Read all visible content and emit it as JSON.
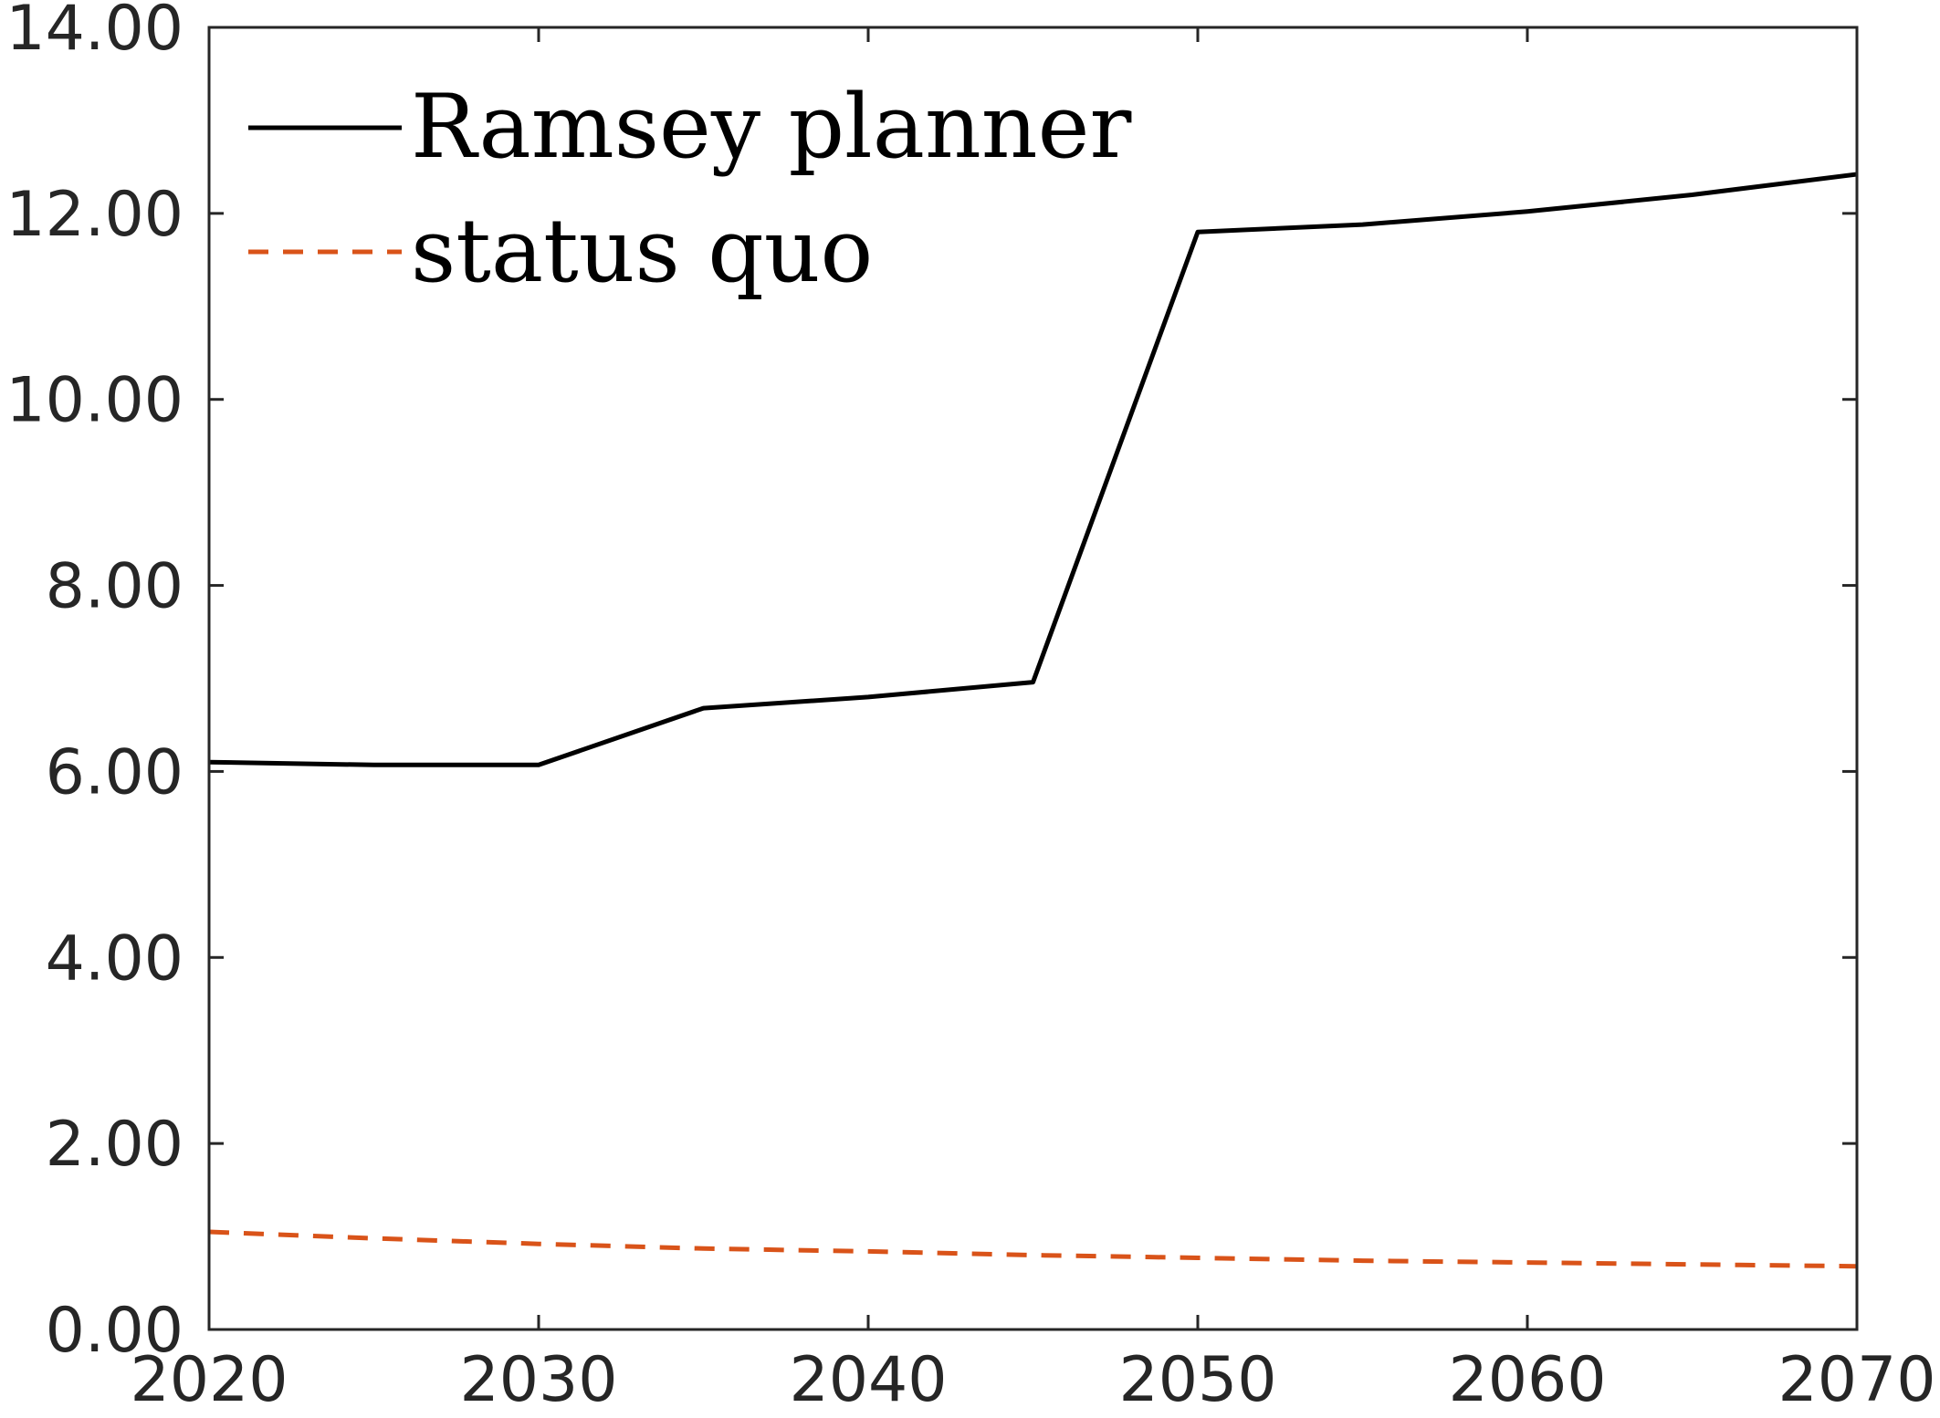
{
  "chart_data": {
    "type": "line",
    "title": "",
    "xlabel": "",
    "ylabel": "",
    "xlim": [
      2020,
      2070
    ],
    "ylim": [
      0,
      14
    ],
    "x_ticks": [
      2020,
      2030,
      2040,
      2050,
      2060,
      2070
    ],
    "x_tick_labels": [
      "2020",
      "2030",
      "2040",
      "2050",
      "2060",
      "2070"
    ],
    "y_ticks": [
      0,
      2,
      4,
      6,
      8,
      10,
      12,
      14
    ],
    "y_tick_labels": [
      "0.00",
      "2.00",
      "4.00",
      "6.00",
      "8.00",
      "10.00",
      "12.00",
      "14.00"
    ],
    "grid": false,
    "legend_position": "top-left",
    "series": [
      {
        "name": "Ramsey planner",
        "color": "#000000",
        "style": "solid",
        "x": [
          2020,
          2025,
          2030,
          2035,
          2040,
          2045,
          2050,
          2055,
          2060,
          2065,
          2070
        ],
        "y": [
          6.1,
          6.07,
          6.07,
          6.68,
          6.8,
          6.96,
          11.8,
          11.88,
          12.02,
          12.2,
          12.42
        ]
      },
      {
        "name": "status quo",
        "color": "#D95319",
        "style": "dashed",
        "x": [
          2020,
          2025,
          2030,
          2035,
          2040,
          2045,
          2050,
          2055,
          2060,
          2065,
          2070
        ],
        "y": [
          1.05,
          0.98,
          0.92,
          0.87,
          0.84,
          0.8,
          0.77,
          0.74,
          0.72,
          0.7,
          0.68
        ]
      }
    ]
  }
}
